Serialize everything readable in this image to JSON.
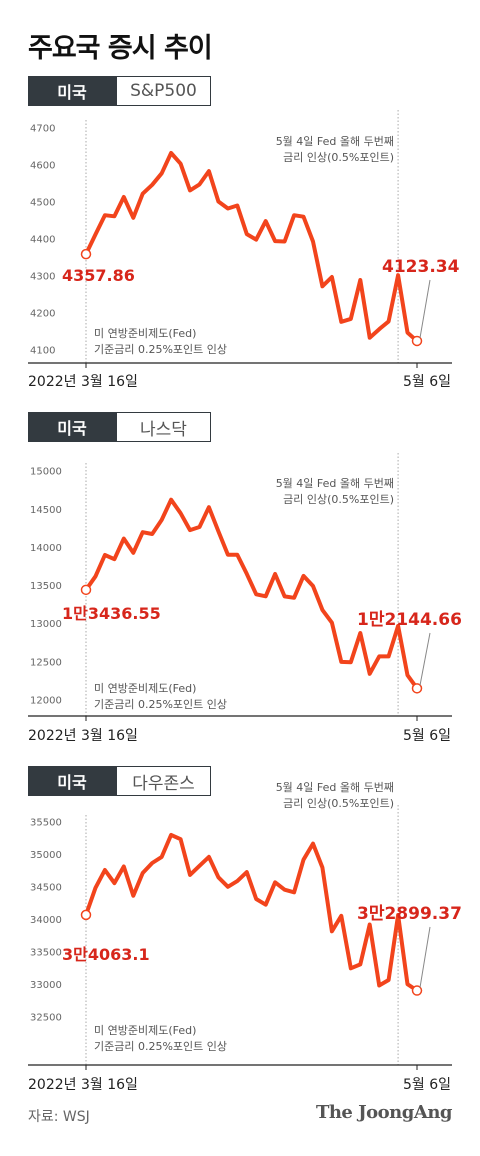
{
  "title": "주요국 증시 추이",
  "source": "자료: WSJ",
  "logo": "The JoongAng",
  "colors": {
    "line": "#f2441c",
    "label": "#d7261b",
    "dark": "#333a40"
  },
  "chart_data": [
    {
      "type": "line",
      "country": "미국",
      "index_name": "S&P500",
      "yticks": [
        "4700",
        "4600",
        "4500",
        "4400",
        "4300",
        "4200",
        "4100"
      ],
      "ylim": [
        4080,
        4720
      ],
      "start_date": "2022년 3월 16일",
      "end_date": "5월 6일",
      "start_label": "4357.86",
      "end_label": "4123.34",
      "note_start": [
        "미 연방준비제도(Fed)",
        "기준금리 0.25%포인트 인상"
      ],
      "note_end": [
        "5월 4일 Fed 올해 두번째",
        "금리 인상(0.5%포인트)"
      ],
      "values": [
        4357.86,
        4411,
        4463,
        4460,
        4512,
        4456,
        4521,
        4545,
        4576,
        4631,
        4602,
        4530,
        4546,
        4582,
        4500,
        4481,
        4489,
        4412,
        4397,
        4447,
        4393,
        4392,
        4463,
        4459,
        4392,
        4271,
        4296,
        4175,
        4183,
        4288,
        4132,
        4155,
        4176,
        4301,
        4146,
        4123.34
      ]
    },
    {
      "type": "line",
      "country": "미국",
      "index_name": "나스닥",
      "yticks": [
        "15000",
        "14500",
        "14000",
        "13500",
        "13000",
        "12500",
        "12000"
      ],
      "ylim": [
        11900,
        15100
      ],
      "start_date": "2022년 3월 16일",
      "end_date": "5월 6일",
      "start_label": "1만3436.55",
      "end_label": "1만2144.66",
      "note_start": [
        "미 연방준비제도(Fed)",
        "기준금리 0.25%포인트 인상"
      ],
      "note_end": [
        "5월 4일 Fed 올해 두번째",
        "금리 인상(0.5%포인트)"
      ],
      "values": [
        13436.55,
        13614,
        13893,
        13838,
        14109,
        13922,
        14192,
        14169,
        14354,
        14619,
        14442,
        14220,
        14261,
        14520,
        14204,
        13897,
        13897,
        13645,
        13378,
        13352,
        13644,
        13351,
        13332,
        13619,
        13487,
        13174,
        13005,
        12491,
        12488,
        12871,
        12335,
        12564,
        12563,
        12964,
        12317,
        12144.66
      ]
    },
    {
      "type": "line",
      "country": "미국",
      "index_name": "다우존스",
      "yticks": [
        "35500",
        "35000",
        "34500",
        "34000",
        "33500",
        "33000",
        "32500"
      ],
      "ylim": [
        32400,
        35600
      ],
      "start_date": "2022년 3월 16일",
      "end_date": "5월 6일",
      "start_label": "3만4063.1",
      "end_label": "3만2899.37",
      "note_start": [
        "미 연방준비제도(Fed)",
        "기준금리 0.25%포인트 인상"
      ],
      "note_end": [
        "5월 4일 Fed 올해 두번째",
        "금리 인상(0.5%포인트)"
      ],
      "values": [
        34063.1,
        34480,
        34754,
        34552,
        34807,
        34358,
        34707,
        34861,
        34955,
        35294,
        35228,
        34678,
        34818,
        34955,
        34641,
        34496,
        34583,
        34721,
        34308,
        34220,
        34565,
        34451,
        34411,
        34912,
        35160,
        34792,
        33811,
        34049,
        33241,
        33301,
        33916,
        32977,
        33061,
        34061,
        32997,
        32899.37
      ]
    }
  ]
}
